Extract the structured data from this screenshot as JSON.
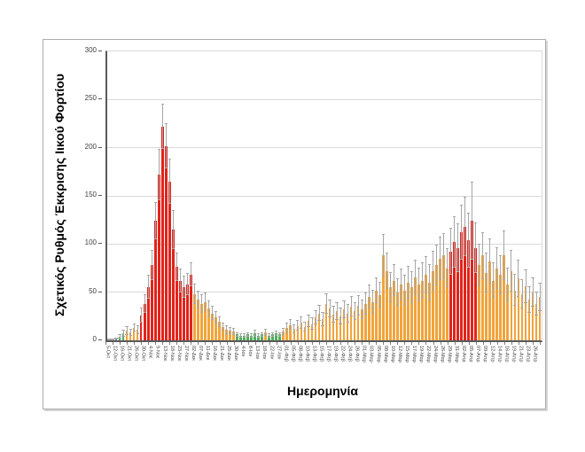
{
  "chart_data": {
    "type": "bar",
    "title": "",
    "ylabel": "Σχετικός Ρυθμός Έκκρισης Ιικού Φορτίου",
    "xlabel": "Ημερομηνία",
    "ylim": [
      0,
      300
    ],
    "yticks": [
      0,
      50,
      100,
      150,
      200,
      250,
      300
    ],
    "grid": true,
    "legend": "none",
    "error_bars": "symmetric gray whiskers with caps, per bar",
    "label_every_n_bars": 2,
    "x_tick_labels": [
      "5-Οκτ",
      "12-Οκτ",
      "16-Οκτ",
      "21-Οκτ",
      "26-Οκτ",
      "30-Οκτ",
      "4-Νοε",
      "9-Νοε",
      "13-Νοε",
      "18-Νοε",
      "23-Νοε",
      "27-Νοε",
      "02-Δεκ",
      "07-Δεκ",
      "11-Δεκ",
      "16-Δεκ",
      "21-Δεκ",
      "25-Δεκ",
      "30-Δεκ",
      "4-Ιαν",
      "8-Ιαν",
      "13-Ιαν",
      "18-Ιαν",
      "22-Ιαν",
      "27-Ιαν",
      "01-Φεβ",
      "05-Φεβ",
      "08-Φεβ",
      "10-Φεβ",
      "13-Φεβ",
      "15-Φεβ",
      "17-Φεβ",
      "19-Φεβ",
      "22-Φεβ",
      "24-Φεβ",
      "26-Φεβ",
      "01-Μαρ",
      "03-Μαρ",
      "05-Μαρ",
      "08-Μαρ",
      "10-Μαρ",
      "12-Μαρ",
      "15-Μαρ",
      "17-Μαρ",
      "19-Μαρ",
      "22-Μαρ",
      "24-Μαρ",
      "26-Μαρ",
      "29-Μαρ",
      "31-Μαρ",
      "02-Απρ",
      "05-Απρ",
      "07-Απρ",
      "09-Απρ",
      "12-Απρ",
      "14-Απρ",
      "16-Απρ",
      "19-Απρ",
      "21-Απρ",
      "23-Απρ",
      "26-Απρ"
    ],
    "colors": {
      "r": "#e2231a",
      "o": "#f1a43b",
      "g": "#4fad5b",
      "x": "#7f7f7f",
      "error": "#a6a6a6",
      "gridline": "#d9d9d9",
      "axis": "#595959"
    },
    "bar_format": [
      "value",
      "error",
      "color_key"
    ],
    "bars": [
      [
        1,
        0.5,
        "x"
      ],
      [
        1,
        0.5,
        "x"
      ],
      [
        1.5,
        0.8,
        "x"
      ],
      [
        4,
        2,
        "g"
      ],
      [
        7,
        3,
        "g"
      ],
      [
        10,
        4,
        "o"
      ],
      [
        8,
        3,
        "o"
      ],
      [
        13,
        4,
        "o"
      ],
      [
        11,
        4,
        "o"
      ],
      [
        26,
        7,
        "r"
      ],
      [
        38,
        9,
        "r"
      ],
      [
        55,
        12,
        "r"
      ],
      [
        78,
        15,
        "r"
      ],
      [
        124,
        19,
        "r"
      ],
      [
        172,
        26,
        "r"
      ],
      [
        222,
        23,
        "r"
      ],
      [
        202,
        23,
        "r"
      ],
      [
        165,
        23,
        "r"
      ],
      [
        115,
        20,
        "r"
      ],
      [
        76,
        14,
        "r"
      ],
      [
        62,
        12,
        "r"
      ],
      [
        55,
        11,
        "r"
      ],
      [
        58,
        11,
        "r"
      ],
      [
        68,
        12,
        "r"
      ],
      [
        48,
        10,
        "o"
      ],
      [
        42,
        9,
        "o"
      ],
      [
        38,
        9,
        "o"
      ],
      [
        40,
        9,
        "o"
      ],
      [
        33,
        8,
        "o"
      ],
      [
        28,
        7,
        "o"
      ],
      [
        24,
        6,
        "o"
      ],
      [
        19,
        5,
        "o"
      ],
      [
        14,
        4,
        "o"
      ],
      [
        11,
        4,
        "o"
      ],
      [
        10,
        3,
        "o"
      ],
      [
        9,
        3,
        "o"
      ],
      [
        6,
        2,
        "g"
      ],
      [
        5,
        2,
        "g"
      ],
      [
        5,
        2,
        "g"
      ],
      [
        6,
        2,
        "g"
      ],
      [
        5,
        2,
        "g"
      ],
      [
        7,
        3,
        "g"
      ],
      [
        5,
        2,
        "g"
      ],
      [
        6,
        2,
        "g"
      ],
      [
        8,
        3,
        "o"
      ],
      [
        5,
        2,
        "g"
      ],
      [
        6,
        2,
        "g"
      ],
      [
        7,
        2,
        "g"
      ],
      [
        6,
        2,
        "g"
      ],
      [
        9,
        3,
        "o"
      ],
      [
        13,
        5,
        "o"
      ],
      [
        16,
        5,
        "o"
      ],
      [
        12,
        4,
        "o"
      ],
      [
        15,
        5,
        "o"
      ],
      [
        18,
        6,
        "o"
      ],
      [
        14,
        5,
        "o"
      ],
      [
        20,
        6,
        "o"
      ],
      [
        17,
        6,
        "o"
      ],
      [
        24,
        7,
        "o"
      ],
      [
        28,
        8,
        "o"
      ],
      [
        22,
        7,
        "o"
      ],
      [
        38,
        10,
        "o"
      ],
      [
        33,
        9,
        "o"
      ],
      [
        27,
        8,
        "o"
      ],
      [
        30,
        9,
        "o"
      ],
      [
        25,
        8,
        "o"
      ],
      [
        32,
        9,
        "o"
      ],
      [
        28,
        9,
        "o"
      ],
      [
        35,
        10,
        "o"
      ],
      [
        30,
        9,
        "o"
      ],
      [
        36,
        10,
        "o"
      ],
      [
        32,
        10,
        "o"
      ],
      [
        38,
        11,
        "o"
      ],
      [
        45,
        12,
        "o"
      ],
      [
        40,
        12,
        "o"
      ],
      [
        52,
        13,
        "o"
      ],
      [
        47,
        13,
        "o"
      ],
      [
        88,
        22,
        "o"
      ],
      [
        72,
        18,
        "o"
      ],
      [
        55,
        15,
        "o"
      ],
      [
        62,
        16,
        "o"
      ],
      [
        50,
        14,
        "o"
      ],
      [
        58,
        16,
        "o"
      ],
      [
        52,
        15,
        "o"
      ],
      [
        60,
        17,
        "o"
      ],
      [
        55,
        16,
        "o"
      ],
      [
        65,
        18,
        "o"
      ],
      [
        58,
        17,
        "o"
      ],
      [
        62,
        18,
        "o"
      ],
      [
        68,
        19,
        "o"
      ],
      [
        60,
        18,
        "o"
      ],
      [
        72,
        20,
        "o"
      ],
      [
        78,
        21,
        "o"
      ],
      [
        85,
        22,
        "o"
      ],
      [
        88,
        23,
        "o"
      ],
      [
        75,
        20,
        "o"
      ],
      [
        92,
        24,
        "r"
      ],
      [
        102,
        26,
        "r"
      ],
      [
        96,
        25,
        "r"
      ],
      [
        112,
        28,
        "r"
      ],
      [
        118,
        30,
        "r"
      ],
      [
        104,
        28,
        "r"
      ],
      [
        124,
        40,
        "r"
      ],
      [
        96,
        26,
        "r"
      ],
      [
        78,
        22,
        "o"
      ],
      [
        88,
        24,
        "o"
      ],
      [
        70,
        20,
        "o"
      ],
      [
        82,
        23,
        "o"
      ],
      [
        62,
        18,
        "o"
      ],
      [
        75,
        21,
        "o"
      ],
      [
        68,
        20,
        "o"
      ],
      [
        88,
        25,
        "o"
      ],
      [
        58,
        17,
        "o"
      ],
      [
        72,
        21,
        "o"
      ],
      [
        52,
        16,
        "o"
      ],
      [
        64,
        19,
        "o"
      ],
      [
        48,
        15,
        "o"
      ],
      [
        56,
        17,
        "o"
      ],
      [
        42,
        13,
        "o"
      ],
      [
        50,
        15,
        "o"
      ],
      [
        38,
        12,
        "o"
      ],
      [
        45,
        14,
        "o"
      ]
    ]
  }
}
